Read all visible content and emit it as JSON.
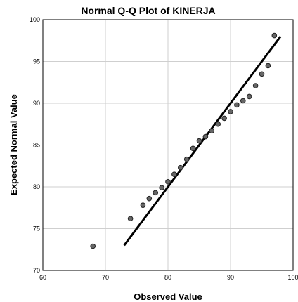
{
  "chart_data": {
    "type": "scatter",
    "title": "Normal Q-Q Plot of KINERJA",
    "xlabel": "Observed Value",
    "ylabel": "Expected Normal Value",
    "xlim": [
      60,
      100
    ],
    "ylim": [
      70,
      100
    ],
    "xticks": [
      60,
      70,
      80,
      90,
      100
    ],
    "yticks": [
      70,
      75,
      80,
      85,
      90,
      95,
      100
    ],
    "grid": true,
    "points": [
      {
        "x": 68,
        "y": 72.9
      },
      {
        "x": 74,
        "y": 76.2
      },
      {
        "x": 76,
        "y": 77.8
      },
      {
        "x": 77,
        "y": 78.6
      },
      {
        "x": 78,
        "y": 79.3
      },
      {
        "x": 79,
        "y": 79.9
      },
      {
        "x": 80,
        "y": 80.6
      },
      {
        "x": 81,
        "y": 81.5
      },
      {
        "x": 82,
        "y": 82.3
      },
      {
        "x": 83,
        "y": 83.3
      },
      {
        "x": 84,
        "y": 84.6
      },
      {
        "x": 85,
        "y": 85.5
      },
      {
        "x": 86,
        "y": 86.0
      },
      {
        "x": 87,
        "y": 86.7
      },
      {
        "x": 88,
        "y": 87.5
      },
      {
        "x": 89,
        "y": 88.2
      },
      {
        "x": 90,
        "y": 89.0
      },
      {
        "x": 91,
        "y": 89.8
      },
      {
        "x": 92,
        "y": 90.3
      },
      {
        "x": 93,
        "y": 90.8
      },
      {
        "x": 94,
        "y": 92.1
      },
      {
        "x": 95,
        "y": 93.5
      },
      {
        "x": 96,
        "y": 94.5
      },
      {
        "x": 97,
        "y": 98.1
      }
    ],
    "reference_line": {
      "x": [
        73,
        98
      ],
      "y": [
        73,
        98
      ]
    },
    "colors": {
      "marker_fill": "#666666",
      "marker_stroke": "#222222",
      "line": "#000000",
      "grid": "#cfcfcf"
    }
  }
}
